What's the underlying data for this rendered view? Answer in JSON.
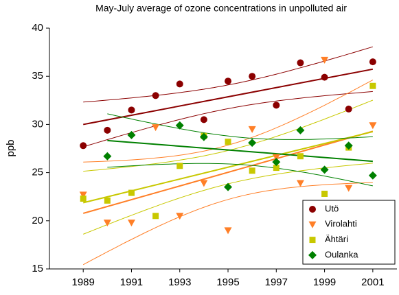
{
  "chart_data": {
    "type": "scatter",
    "title": "May-July average of ozone concentrations in unpolluted air",
    "y_label": "ppb",
    "x": [
      1989,
      1990,
      1991,
      1992,
      1993,
      1994,
      1995,
      1996,
      1997,
      1998,
      1999,
      2000,
      2001
    ],
    "series": [
      {
        "name": "Utö",
        "color": "#8b0000",
        "marker": "circle",
        "values": [
          27.8,
          29.4,
          31.5,
          33.0,
          34.2,
          30.5,
          34.5,
          35.0,
          32.0,
          36.4,
          34.9,
          31.6,
          36.5
        ]
      },
      {
        "name": "Virolahti",
        "color": "#ff7f27",
        "marker": "triangle",
        "values": [
          22.7,
          19.8,
          19.8,
          29.7,
          20.5,
          23.9,
          19.0,
          29.5,
          26.6,
          23.9,
          36.7,
          23.4,
          29.9
        ]
      },
      {
        "name": "Ähtäri",
        "color": "#c8c800",
        "marker": "square",
        "values": [
          22.3,
          22.1,
          22.9,
          20.5,
          25.7,
          28.8,
          28.2,
          25.2,
          25.5,
          26.7,
          22.8,
          27.6,
          34.0
        ]
      },
      {
        "name": "Oulanka",
        "color": "#008000",
        "marker": "diamond",
        "values": [
          null,
          26.7,
          28.9,
          null,
          29.9,
          28.7,
          23.5,
          28.1,
          26.1,
          29.4,
          25.3,
          27.8,
          24.7
        ]
      }
    ],
    "trend_lines": true,
    "confidence_bands": true,
    "xlim": [
      1987.6,
      2002.0
    ],
    "xticks": [
      1989,
      1991,
      1993,
      1995,
      1997,
      1999,
      2001
    ],
    "ylim": [
      15,
      40
    ],
    "yticks": [
      15,
      20,
      25,
      30,
      35,
      40
    ],
    "legend": "lower right"
  }
}
